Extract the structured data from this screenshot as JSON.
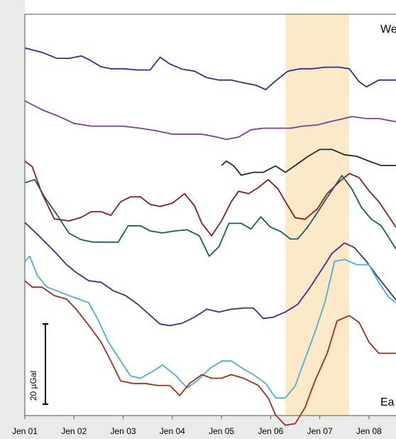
{
  "chart_data": {
    "type": "line",
    "title": "",
    "xlabel": "",
    "ylabel": "",
    "x_ticks": [
      "Jen 01",
      "Jen 02",
      "Jen 03",
      "Jen 04",
      "Jen 05",
      "Jen 06",
      "Jen 07",
      "Jen 08"
    ],
    "xlim": [
      2001.0,
      2008.55
    ],
    "ylim": [
      0,
      100
    ],
    "grid": false,
    "shaded_period": [
      2006.3,
      2007.6
    ],
    "shade_color": "#fbe9c8",
    "corner_labels": {
      "top_right": "We",
      "bottom_right": "Ea"
    },
    "scale_bar": {
      "label": "20 µGal",
      "length": 20
    },
    "series": [
      {
        "color": "#2e3191",
        "points": [
          [
            2001.0,
            91.6
          ],
          [
            2001.35,
            90.5
          ],
          [
            2001.65,
            89.0
          ],
          [
            2001.9,
            89.0
          ],
          [
            2002.15,
            89.6
          ],
          [
            2002.3,
            88.7
          ],
          [
            2002.55,
            86.9
          ],
          [
            2002.75,
            86.4
          ],
          [
            2003.0,
            86.4
          ],
          [
            2003.3,
            86.1
          ],
          [
            2003.55,
            86.1
          ],
          [
            2003.75,
            89.3
          ],
          [
            2003.95,
            87.6
          ],
          [
            2004.2,
            86.3
          ],
          [
            2004.45,
            85.8
          ],
          [
            2004.7,
            84.2
          ],
          [
            2004.95,
            83.6
          ],
          [
            2005.2,
            83.6
          ],
          [
            2005.45,
            82.9
          ],
          [
            2005.7,
            82.3
          ],
          [
            2005.9,
            81.2
          ],
          [
            2006.1,
            83.4
          ],
          [
            2006.35,
            85.8
          ],
          [
            2006.6,
            86.4
          ],
          [
            2006.85,
            86.4
          ],
          [
            2007.1,
            86.8
          ],
          [
            2007.4,
            86.8
          ],
          [
            2007.6,
            86.4
          ],
          [
            2007.8,
            83.2
          ],
          [
            2007.95,
            81.9
          ],
          [
            2008.2,
            83.6
          ],
          [
            2008.55,
            83.6
          ]
        ]
      },
      {
        "color": "#7d3e97",
        "points": [
          [
            2001.0,
            78.4
          ],
          [
            2001.35,
            76.2
          ],
          [
            2001.7,
            74.5
          ],
          [
            2002.0,
            72.8
          ],
          [
            2002.35,
            72.1
          ],
          [
            2002.7,
            72.1
          ],
          [
            2003.0,
            72.1
          ],
          [
            2003.35,
            71.6
          ],
          [
            2003.7,
            70.9
          ],
          [
            2004.0,
            70.1
          ],
          [
            2004.3,
            70.1
          ],
          [
            2004.6,
            70.1
          ],
          [
            2004.9,
            69.4
          ],
          [
            2005.1,
            68.8
          ],
          [
            2005.35,
            69.4
          ],
          [
            2005.6,
            71.2
          ],
          [
            2005.85,
            71.6
          ],
          [
            2006.1,
            71.6
          ],
          [
            2006.4,
            71.6
          ],
          [
            2006.65,
            72.1
          ],
          [
            2006.95,
            72.4
          ],
          [
            2007.2,
            73.2
          ],
          [
            2007.45,
            73.9
          ],
          [
            2007.65,
            74.5
          ],
          [
            2007.95,
            74.0
          ],
          [
            2008.2,
            74.0
          ],
          [
            2008.55,
            73.2
          ]
        ]
      },
      {
        "color": "#1e2e2c",
        "points": [
          [
            2005.0,
            62.3
          ],
          [
            2005.1,
            63.4
          ],
          [
            2005.25,
            62.2
          ],
          [
            2005.4,
            59.9
          ],
          [
            2005.65,
            60.6
          ],
          [
            2005.85,
            60.6
          ],
          [
            2006.1,
            62.2
          ],
          [
            2006.3,
            60.6
          ],
          [
            2006.5,
            62.3
          ],
          [
            2006.75,
            64.5
          ],
          [
            2007.0,
            66.3
          ],
          [
            2007.25,
            66.3
          ],
          [
            2007.5,
            65.0
          ],
          [
            2007.75,
            64.6
          ],
          [
            2008.0,
            63.4
          ],
          [
            2008.25,
            62.3
          ],
          [
            2008.55,
            62.3
          ]
        ]
      },
      {
        "color": "#8e1e1e",
        "points": [
          [
            2001.0,
            63.4
          ],
          [
            2001.15,
            62.0
          ],
          [
            2001.35,
            55.3
          ],
          [
            2001.6,
            49.0
          ],
          [
            2001.9,
            48.5
          ],
          [
            2002.15,
            49.4
          ],
          [
            2002.35,
            50.8
          ],
          [
            2002.55,
            50.8
          ],
          [
            2002.75,
            49.9
          ],
          [
            2002.95,
            53.3
          ],
          [
            2003.15,
            54.5
          ],
          [
            2003.35,
            54.5
          ],
          [
            2003.55,
            52.6
          ],
          [
            2003.75,
            52.1
          ],
          [
            2004.0,
            52.9
          ],
          [
            2004.25,
            55.3
          ],
          [
            2004.45,
            52.3
          ],
          [
            2004.6,
            47.9
          ],
          [
            2004.8,
            44.8
          ],
          [
            2005.0,
            48.5
          ],
          [
            2005.2,
            53.3
          ],
          [
            2005.35,
            55.9
          ],
          [
            2005.55,
            55.3
          ],
          [
            2005.75,
            56.8
          ],
          [
            2005.95,
            58.8
          ],
          [
            2006.15,
            56.5
          ],
          [
            2006.3,
            53.3
          ],
          [
            2006.5,
            49.3
          ],
          [
            2006.7,
            48.9
          ],
          [
            2006.95,
            51.5
          ],
          [
            2007.15,
            55.3
          ],
          [
            2007.4,
            58.3
          ],
          [
            2007.6,
            60.3
          ],
          [
            2007.8,
            59.3
          ],
          [
            2008.0,
            56.0
          ],
          [
            2008.2,
            53.3
          ],
          [
            2008.55,
            46.9
          ]
        ]
      },
      {
        "color": "#1a5a66",
        "points": [
          [
            2001.0,
            58.0
          ],
          [
            2001.2,
            58.8
          ],
          [
            2001.4,
            54.5
          ],
          [
            2001.65,
            50.1
          ],
          [
            2001.9,
            45.4
          ],
          [
            2002.15,
            43.8
          ],
          [
            2002.4,
            43.2
          ],
          [
            2002.7,
            43.2
          ],
          [
            2002.9,
            43.2
          ],
          [
            2003.1,
            47.3
          ],
          [
            2003.35,
            47.3
          ],
          [
            2003.55,
            46.0
          ],
          [
            2003.8,
            45.5
          ],
          [
            2004.05,
            46.0
          ],
          [
            2004.3,
            46.3
          ],
          [
            2004.55,
            44.8
          ],
          [
            2004.75,
            39.7
          ],
          [
            2004.95,
            42.1
          ],
          [
            2005.15,
            47.9
          ],
          [
            2005.4,
            47.9
          ],
          [
            2005.6,
            46.5
          ],
          [
            2005.8,
            49.5
          ],
          [
            2006.0,
            46.9
          ],
          [
            2006.2,
            45.9
          ],
          [
            2006.4,
            44.0
          ],
          [
            2006.55,
            44.0
          ],
          [
            2006.75,
            46.9
          ],
          [
            2007.0,
            51.5
          ],
          [
            2007.2,
            55.3
          ],
          [
            2007.45,
            59.8
          ],
          [
            2007.65,
            56.5
          ],
          [
            2007.85,
            51.8
          ],
          [
            2008.05,
            48.9
          ],
          [
            2008.25,
            47.3
          ],
          [
            2008.55,
            41.5
          ]
        ]
      },
      {
        "color": "#3a2f8f",
        "points": [
          [
            2001.0,
            48.1
          ],
          [
            2001.3,
            44.6
          ],
          [
            2001.6,
            40.9
          ],
          [
            2001.85,
            37.6
          ],
          [
            2002.05,
            35.6
          ],
          [
            2002.3,
            33.6
          ],
          [
            2002.55,
            33.2
          ],
          [
            2002.8,
            31.1
          ],
          [
            2003.05,
            29.9
          ],
          [
            2003.3,
            27.7
          ],
          [
            2003.55,
            25.0
          ],
          [
            2003.75,
            22.8
          ],
          [
            2003.95,
            22.4
          ],
          [
            2004.2,
            23.0
          ],
          [
            2004.45,
            24.5
          ],
          [
            2004.7,
            26.5
          ],
          [
            2004.95,
            25.8
          ],
          [
            2005.2,
            26.5
          ],
          [
            2005.45,
            26.8
          ],
          [
            2005.65,
            26.8
          ],
          [
            2005.85,
            24.2
          ],
          [
            2006.05,
            24.5
          ],
          [
            2006.3,
            25.8
          ],
          [
            2006.55,
            27.7
          ],
          [
            2006.8,
            31.9
          ],
          [
            2007.05,
            36.6
          ],
          [
            2007.25,
            40.4
          ],
          [
            2007.5,
            43.0
          ],
          [
            2007.7,
            41.9
          ],
          [
            2007.95,
            38.4
          ],
          [
            2008.15,
            35.0
          ],
          [
            2008.35,
            31.9
          ],
          [
            2008.55,
            28.8
          ]
        ]
      },
      {
        "color": "#4ab0d8",
        "points": [
          [
            2001.0,
            38.4
          ],
          [
            2001.1,
            39.7
          ],
          [
            2001.25,
            35.0
          ],
          [
            2001.45,
            32.0
          ],
          [
            2001.65,
            31.1
          ],
          [
            2001.9,
            29.9
          ],
          [
            2002.1,
            29.0
          ],
          [
            2002.3,
            28.1
          ],
          [
            2002.5,
            23.6
          ],
          [
            2002.7,
            18.3
          ],
          [
            2002.95,
            13.6
          ],
          [
            2003.15,
            9.9
          ],
          [
            2003.35,
            9.3
          ],
          [
            2003.6,
            11.0
          ],
          [
            2003.8,
            12.6
          ],
          [
            2004.05,
            10.2
          ],
          [
            2004.3,
            6.9
          ],
          [
            2004.5,
            8.6
          ],
          [
            2004.75,
            11.6
          ],
          [
            2005.0,
            13.6
          ],
          [
            2005.2,
            13.6
          ],
          [
            2005.45,
            11.6
          ],
          [
            2005.65,
            10.2
          ],
          [
            2005.9,
            8.0
          ],
          [
            2006.1,
            4.4
          ],
          [
            2006.3,
            4.4
          ],
          [
            2006.5,
            7.4
          ],
          [
            2006.7,
            14.1
          ],
          [
            2006.9,
            20.7
          ],
          [
            2007.1,
            28.1
          ],
          [
            2007.3,
            38.4
          ],
          [
            2007.5,
            38.9
          ],
          [
            2007.75,
            37.6
          ],
          [
            2008.0,
            37.6
          ],
          [
            2008.2,
            33.2
          ],
          [
            2008.4,
            29.5
          ],
          [
            2008.55,
            28.1
          ]
        ]
      },
      {
        "color": "#a0301e",
        "points": [
          [
            2001.0,
            33.6
          ],
          [
            2001.15,
            32.0
          ],
          [
            2001.35,
            32.0
          ],
          [
            2001.6,
            29.9
          ],
          [
            2001.85,
            29.0
          ],
          [
            2002.05,
            26.4
          ],
          [
            2002.3,
            22.5
          ],
          [
            2002.55,
            18.3
          ],
          [
            2002.75,
            13.6
          ],
          [
            2002.95,
            8.6
          ],
          [
            2003.2,
            8.0
          ],
          [
            2003.45,
            8.0
          ],
          [
            2003.7,
            7.5
          ],
          [
            2003.95,
            7.5
          ],
          [
            2004.15,
            5.0
          ],
          [
            2004.35,
            8.0
          ],
          [
            2004.6,
            10.2
          ],
          [
            2004.8,
            9.3
          ],
          [
            2005.0,
            9.3
          ],
          [
            2005.2,
            10.2
          ],
          [
            2005.45,
            9.3
          ],
          [
            2005.75,
            7.5
          ],
          [
            2005.95,
            4.4
          ],
          [
            2006.1,
            0.1
          ],
          [
            2006.3,
            -2.4
          ],
          [
            2006.5,
            -2.0
          ],
          [
            2006.7,
            2.0
          ],
          [
            2006.9,
            8.6
          ],
          [
            2007.15,
            15.5
          ],
          [
            2007.35,
            23.6
          ],
          [
            2007.6,
            24.9
          ],
          [
            2007.8,
            23.2
          ],
          [
            2008.0,
            18.3
          ],
          [
            2008.2,
            15.5
          ],
          [
            2008.4,
            15.5
          ],
          [
            2008.55,
            15.5
          ]
        ]
      }
    ]
  }
}
